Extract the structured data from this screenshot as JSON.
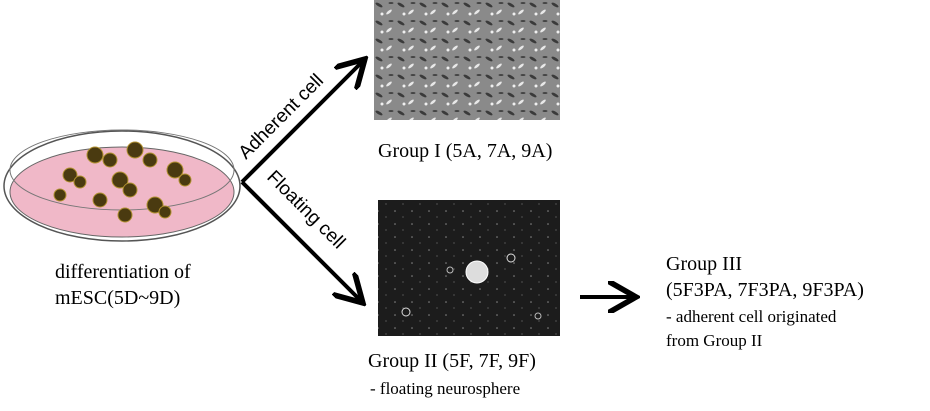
{
  "dish": {
    "label": [
      "differentiation of",
      "mESC(5D~9D)"
    ]
  },
  "arrows": {
    "adherent": "Adherent cell",
    "floating": "Floating cell"
  },
  "group1": {
    "label": "Group I (5A, 7A, 9A)"
  },
  "group2": {
    "label": "Group II (5F, 7F, 9F)",
    "note": "- floating neurosphere"
  },
  "group3": {
    "title": "Group III",
    "members": "(5F3PA, 7F3PA, 9F3PA)",
    "note": [
      "- adherent cell originated",
      "from Group II"
    ]
  }
}
